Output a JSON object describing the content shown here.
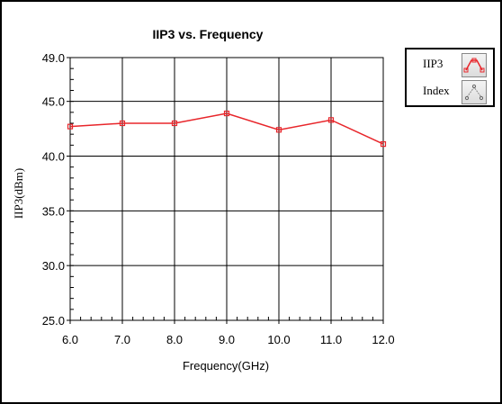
{
  "chart_data": {
    "type": "line",
    "title": "IIP3 vs. Frequency",
    "xlabel": "Frequency(GHz)",
    "ylabel": "IIP3(dBm)",
    "x": [
      6.0,
      7.0,
      8.0,
      9.0,
      10.0,
      11.0,
      12.0
    ],
    "x_tick_labels": [
      "6.0",
      "7.0",
      "8.0",
      "9.0",
      "10.0",
      "11.0",
      "12.0"
    ],
    "xlim": [
      6.0,
      12.0
    ],
    "ylim": [
      25.0,
      49.0
    ],
    "y_ticks": [
      25.0,
      30.0,
      35.0,
      40.0,
      45.0,
      49.0
    ],
    "y_tick_labels": [
      "25.0",
      "30.0",
      "35.0",
      "40.0",
      "45.0",
      "49.0"
    ],
    "series": [
      {
        "name": "IIP3",
        "values": [
          42.7,
          43.0,
          43.0,
          43.9,
          42.4,
          43.3,
          41.1
        ],
        "color": "#e8262b"
      }
    ],
    "grid": true,
    "legend_position": "top-right"
  },
  "legend": {
    "items": [
      {
        "label": "IIP3",
        "icon": "line-marker-icon",
        "color": "#e8262b"
      },
      {
        "label": "Index",
        "icon": "index-marker-icon",
        "color": "#888888"
      }
    ]
  }
}
